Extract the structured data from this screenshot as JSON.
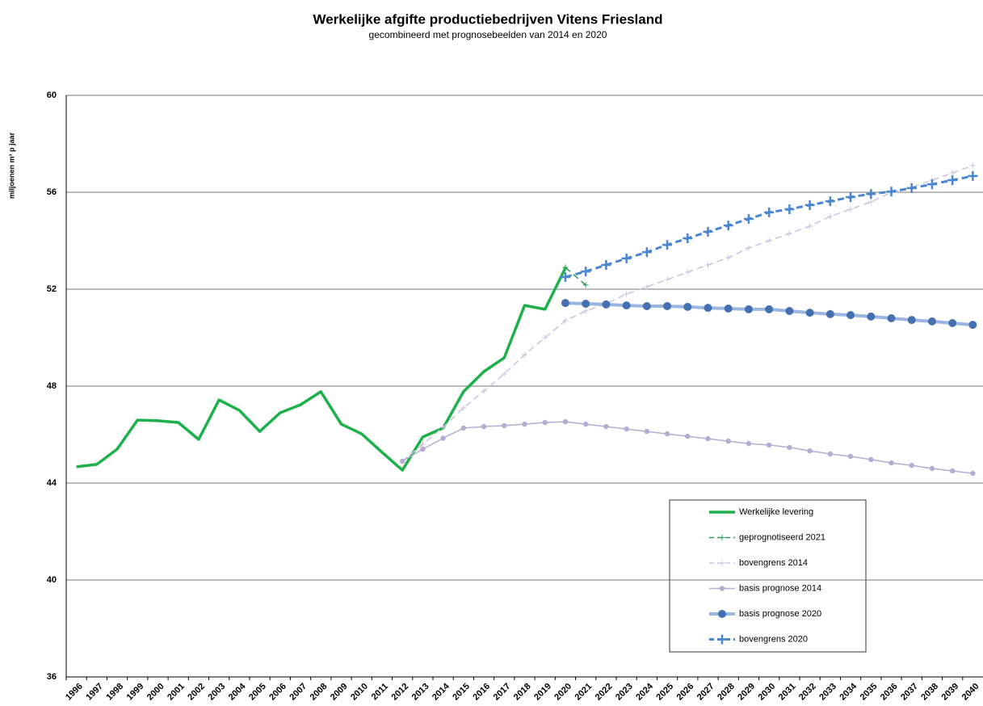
{
  "chart_data": {
    "type": "line",
    "title": "Werkelijke afgifte productiebedrijven Vitens Friesland",
    "subtitle": "gecombineerd met prognosebeelden van 2014 en 2020",
    "y_label": "miljoenen m³ p jaar",
    "categories": [
      "1996",
      "1997",
      "1998",
      "1999",
      "2000",
      "2001",
      "2002",
      "2003",
      "2004",
      "2005",
      "2006",
      "2007",
      "2008",
      "2009",
      "2010",
      "2011",
      "2012",
      "2013",
      "2014",
      "2015",
      "2016",
      "2017",
      "2018",
      "2019",
      "2020",
      "2021",
      "2022",
      "2023",
      "2024",
      "2025",
      "2026",
      "2027",
      "2028",
      "2029",
      "2030",
      "2031",
      "2032",
      "2033",
      "2034",
      "2035",
      "2036",
      "2037",
      "2038",
      "2039",
      "2040"
    ],
    "ylim": [
      36,
      60
    ],
    "yticks": [
      36,
      40,
      44,
      48,
      52,
      56,
      60
    ],
    "grid": true,
    "series": [
      {
        "name": "Werkelijke levering",
        "color": "#1db04b",
        "dash": false,
        "width": 3.5,
        "marker": "none",
        "values": [
          44.67,
          44.77,
          45.4,
          46.6,
          46.57,
          46.5,
          45.8,
          47.43,
          47.0,
          46.13,
          46.9,
          47.23,
          47.77,
          46.43,
          46.03,
          45.27,
          44.53,
          45.9,
          46.27,
          47.77,
          48.6,
          49.17,
          51.33,
          51.17,
          52.87,
          null,
          null,
          null,
          null,
          null,
          null,
          null,
          null,
          null,
          null,
          null,
          null,
          null,
          null,
          null,
          null,
          null,
          null,
          null,
          null
        ]
      },
      {
        "name": "geprognotiseerd 2021",
        "color": "#2e9b5a",
        "dash": true,
        "width": 1.5,
        "marker": "plus-small",
        "values": [
          null,
          null,
          null,
          null,
          null,
          null,
          null,
          null,
          null,
          null,
          null,
          null,
          null,
          null,
          null,
          null,
          null,
          null,
          null,
          null,
          null,
          null,
          null,
          null,
          52.9,
          52.17,
          null,
          null,
          null,
          null,
          null,
          null,
          null,
          null,
          null,
          null,
          null,
          null,
          null,
          null,
          null,
          null,
          null,
          null,
          null
        ]
      },
      {
        "name": "bovengrens 2014",
        "color": "#cbc3dd",
        "dash": true,
        "width": 1.5,
        "marker": "plus-small",
        "values": [
          null,
          null,
          null,
          null,
          null,
          null,
          null,
          null,
          null,
          null,
          null,
          null,
          null,
          null,
          null,
          null,
          44.9,
          45.6,
          46.3,
          47.1,
          47.8,
          48.5,
          49.3,
          50.0,
          50.7,
          51.1,
          51.4,
          51.8,
          52.1,
          52.4,
          52.7,
          53.0,
          53.3,
          53.7,
          54.0,
          54.3,
          54.6,
          55.0,
          55.3,
          55.6,
          56.0,
          56.2,
          56.5,
          56.8,
          57.1
        ]
      },
      {
        "name": "basis prognose 2014",
        "color": "#b6abd1",
        "dash": false,
        "width": 1.5,
        "marker": "circle-small",
        "values": [
          null,
          null,
          null,
          null,
          null,
          null,
          null,
          null,
          null,
          null,
          null,
          null,
          null,
          null,
          null,
          null,
          44.9,
          45.4,
          45.85,
          46.27,
          46.33,
          46.37,
          46.43,
          46.5,
          46.53,
          46.43,
          46.33,
          46.23,
          46.13,
          46.03,
          45.93,
          45.83,
          45.73,
          45.63,
          45.57,
          45.47,
          45.33,
          45.2,
          45.1,
          44.97,
          44.83,
          44.73,
          44.6,
          44.5,
          44.4
        ]
      },
      {
        "name": "basis prognose 2020",
        "color": "#9ab6e0",
        "marker_color": "#4470b0",
        "dash": false,
        "width": 4,
        "marker": "circle",
        "values": [
          null,
          null,
          null,
          null,
          null,
          null,
          null,
          null,
          null,
          null,
          null,
          null,
          null,
          null,
          null,
          null,
          null,
          null,
          null,
          null,
          null,
          null,
          null,
          null,
          51.43,
          51.4,
          51.37,
          51.33,
          51.3,
          51.3,
          51.27,
          51.23,
          51.2,
          51.17,
          51.17,
          51.1,
          51.03,
          50.97,
          50.93,
          50.87,
          50.8,
          50.73,
          50.67,
          50.6,
          50.53
        ]
      },
      {
        "name": "bovengrens 2020",
        "color": "#4a86d0",
        "dash": true,
        "width": 3,
        "marker": "plus",
        "values": [
          null,
          null,
          null,
          null,
          null,
          null,
          null,
          null,
          null,
          null,
          null,
          null,
          null,
          null,
          null,
          null,
          null,
          null,
          null,
          null,
          null,
          null,
          null,
          null,
          52.5,
          52.73,
          53.0,
          53.27,
          53.53,
          53.83,
          54.1,
          54.37,
          54.63,
          54.9,
          55.17,
          55.3,
          55.47,
          55.63,
          55.8,
          55.93,
          56.03,
          56.17,
          56.33,
          56.5,
          56.67
        ]
      }
    ]
  }
}
